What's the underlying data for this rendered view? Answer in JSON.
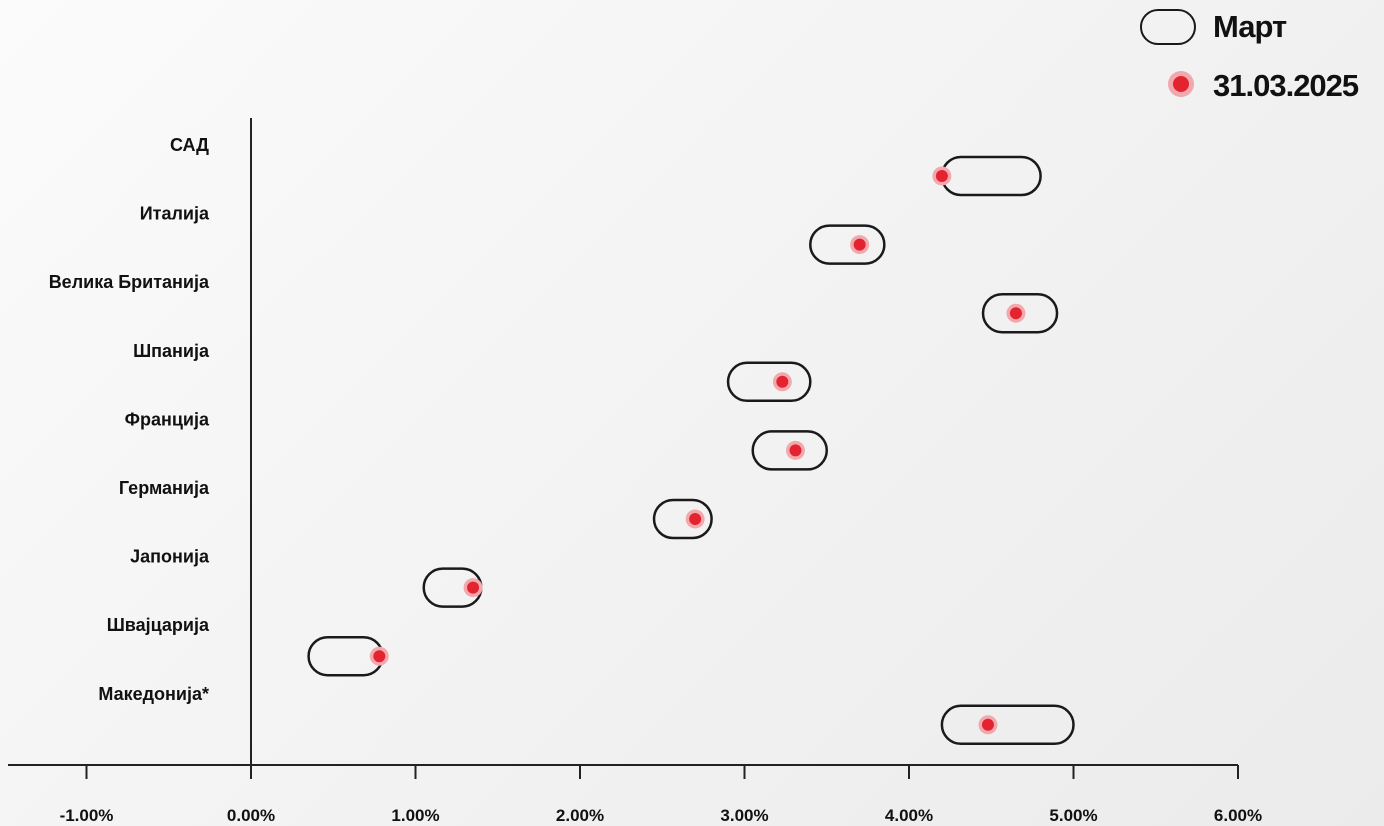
{
  "chart_data": {
    "type": "range-dot",
    "categories": [
      "САД",
      "Италија",
      "Велика Британија",
      "Шпанија",
      "Франција",
      "Германија",
      "Јапонија",
      "Швајцарија",
      "Македонија*"
    ],
    "series": [
      {
        "name": "Март",
        "kind": "range",
        "ranges": [
          [
            4.2,
            4.8
          ],
          [
            3.4,
            3.85
          ],
          [
            4.45,
            4.9
          ],
          [
            2.9,
            3.4
          ],
          [
            3.05,
            3.5
          ],
          [
            2.45,
            2.8
          ],
          [
            1.05,
            1.4
          ],
          [
            0.35,
            0.8
          ],
          [
            4.2,
            5.0
          ]
        ]
      },
      {
        "name": "31.03.2025",
        "kind": "point",
        "values": [
          4.2,
          3.7,
          4.65,
          3.23,
          3.31,
          2.7,
          1.35,
          0.78,
          4.48
        ]
      }
    ],
    "xlim": [
      -1.6,
      6.0
    ],
    "xticks": [
      -1.0,
      0.0,
      1.0,
      2.0,
      3.0,
      4.0,
      5.0,
      6.0
    ],
    "xtick_labels": [
      "-1.00%",
      "0.00%",
      "1.00%",
      "2.00%",
      "3.00%",
      "4.00%",
      "5.00%",
      "6.00%"
    ],
    "legend_position": "top-right",
    "grid": false,
    "colors": {
      "range_stroke": "#1a1a1a",
      "dot": "#e3232f",
      "dot_halo": "#f2a9ad",
      "axis": "#222222"
    }
  }
}
